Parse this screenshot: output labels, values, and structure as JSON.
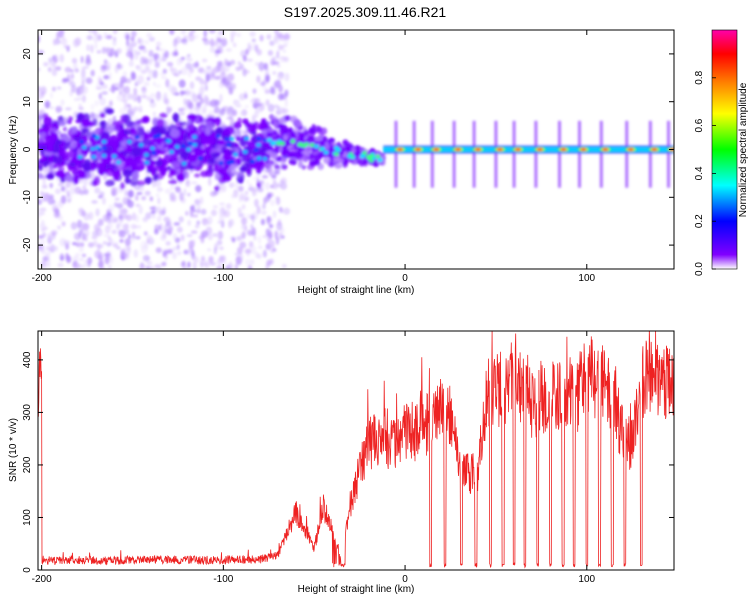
{
  "title": "S197.2025.309.11.46.R21",
  "chart_data": [
    {
      "type": "heatmap",
      "xlabel": "Height of straight line (km)",
      "ylabel": "Frequency (Hz)",
      "xlim": [
        -202,
        148
      ],
      "ylim": [
        -25,
        25
      ],
      "xticks": [
        -200,
        -100,
        0,
        100
      ],
      "yticks": [
        20,
        10,
        0,
        -10,
        -20
      ],
      "colorbar": {
        "label": "Normalized spectral amplitude",
        "range": [
          0,
          1
        ],
        "ticks": [
          0.0,
          0.2,
          0.4,
          0.6,
          0.8
        ],
        "tick_labels": [
          "0.0",
          "0.2",
          "0.4",
          "0.6",
          "0.8"
        ],
        "colormap": [
          "#ffffff",
          "#8000ff",
          "#0000ff",
          "#00ffff",
          "#00ff00",
          "#ffff00",
          "#ff8000",
          "#ff0000",
          "#ff00aa"
        ]
      },
      "features": {
        "noisy_region_x": [
          -202,
          -75
        ],
        "transition_region_x": [
          -75,
          -12
        ],
        "tone_region_x": [
          -12,
          148
        ],
        "tone_frequency": 0,
        "tone_peak_x": [
          -5,
          5,
          15,
          27,
          38,
          50,
          60,
          72,
          85,
          96,
          108,
          122,
          135,
          145
        ]
      }
    },
    {
      "type": "line",
      "xlabel": "Height of straight line (km)",
      "ylabel": "SNR (10 * v/v)",
      "xlim": [
        -202,
        148
      ],
      "ylim": [
        0,
        455
      ],
      "xticks": [
        -200,
        -100,
        0,
        100
      ],
      "yticks": [
        0,
        100,
        200,
        300,
        400
      ],
      "color": "#ee2222",
      "series": [
        {
          "name": "SNR",
          "x": [
            -200,
            -180,
            -160,
            -140,
            -120,
            -100,
            -80,
            -70,
            -65,
            -60,
            -55,
            -50,
            -45,
            -40,
            -35,
            -30,
            -25,
            -20,
            -15,
            -10,
            -5,
            0,
            5,
            10,
            15,
            20,
            25,
            30,
            35,
            40,
            45,
            50,
            55,
            60,
            65,
            70,
            75,
            80,
            85,
            90,
            95,
            100,
            105,
            110,
            115,
            120,
            125,
            130,
            135,
            140,
            148
          ],
          "values": [
            18,
            19,
            18,
            20,
            19,
            19,
            20,
            28,
            70,
            110,
            80,
            40,
            120,
            75,
            20,
            120,
            190,
            240,
            250,
            240,
            235,
            260,
            265,
            270,
            285,
            300,
            295,
            200,
            180,
            190,
            330,
            340,
            355,
            380,
            335,
            310,
            330,
            340,
            330,
            340,
            335,
            370,
            360,
            350,
            320,
            250,
            240,
            350,
            365,
            360,
            355
          ]
        }
      ],
      "dropout_x": [
        14,
        22,
        31,
        39,
        47,
        54,
        60,
        66,
        73,
        80,
        87,
        93,
        100,
        107,
        114,
        121,
        130
      ]
    }
  ]
}
